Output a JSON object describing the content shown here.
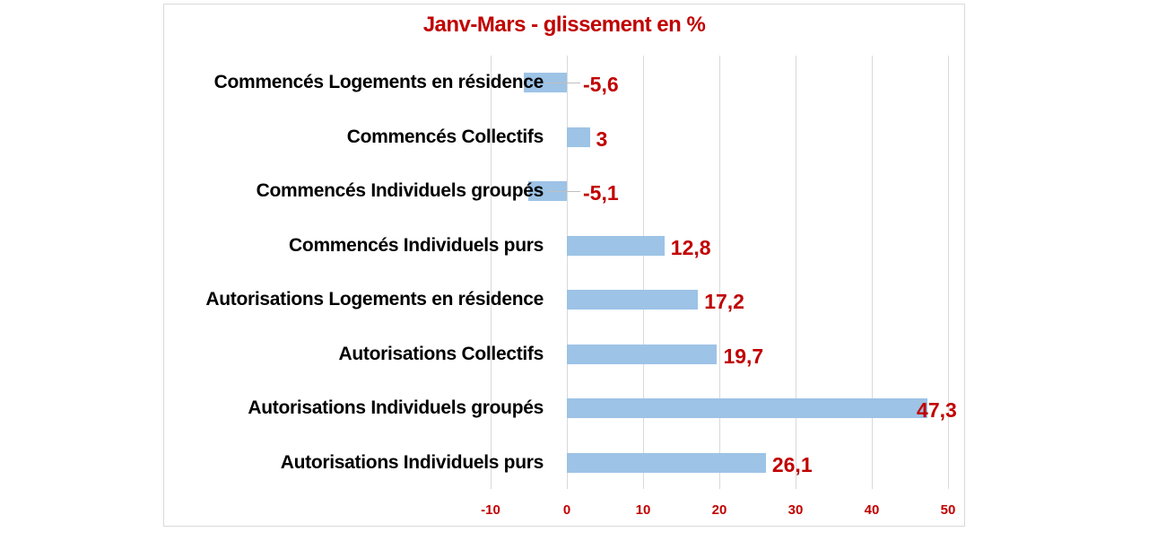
{
  "chart_data": {
    "type": "bar",
    "orientation": "horizontal",
    "title": "Janv-Mars - glissement en %",
    "xlabel": "",
    "ylabel": "",
    "categories": [
      "Commencés  Logements en résidence",
      "Commencés  Collectifs",
      "Commencés  Individuels groupés",
      "Commencés  Individuels purs",
      "Autorisations Logements en résidence",
      "Autorisations  Collectifs",
      "Autorisations Individuels groupés",
      "Autorisations Individuels purs"
    ],
    "values": [
      -5.6,
      3,
      -5.1,
      12.8,
      17.2,
      19.7,
      47.3,
      26.1
    ],
    "value_labels": [
      "-5,6",
      "3",
      "-5,1",
      "12,8",
      "17,2",
      "19,7",
      "47,3",
      "26,1"
    ],
    "xlim": [
      -10,
      50
    ],
    "xticks": [
      "-10",
      "0",
      "10",
      "20",
      "30",
      "40",
      "50"
    ],
    "grid": true,
    "legend": "none",
    "colors": {
      "bar": "#9dc3e6",
      "title": "#c00000",
      "data_labels": "#c00000",
      "ticks": "#c00000",
      "grid": "#d9d9d9"
    }
  }
}
